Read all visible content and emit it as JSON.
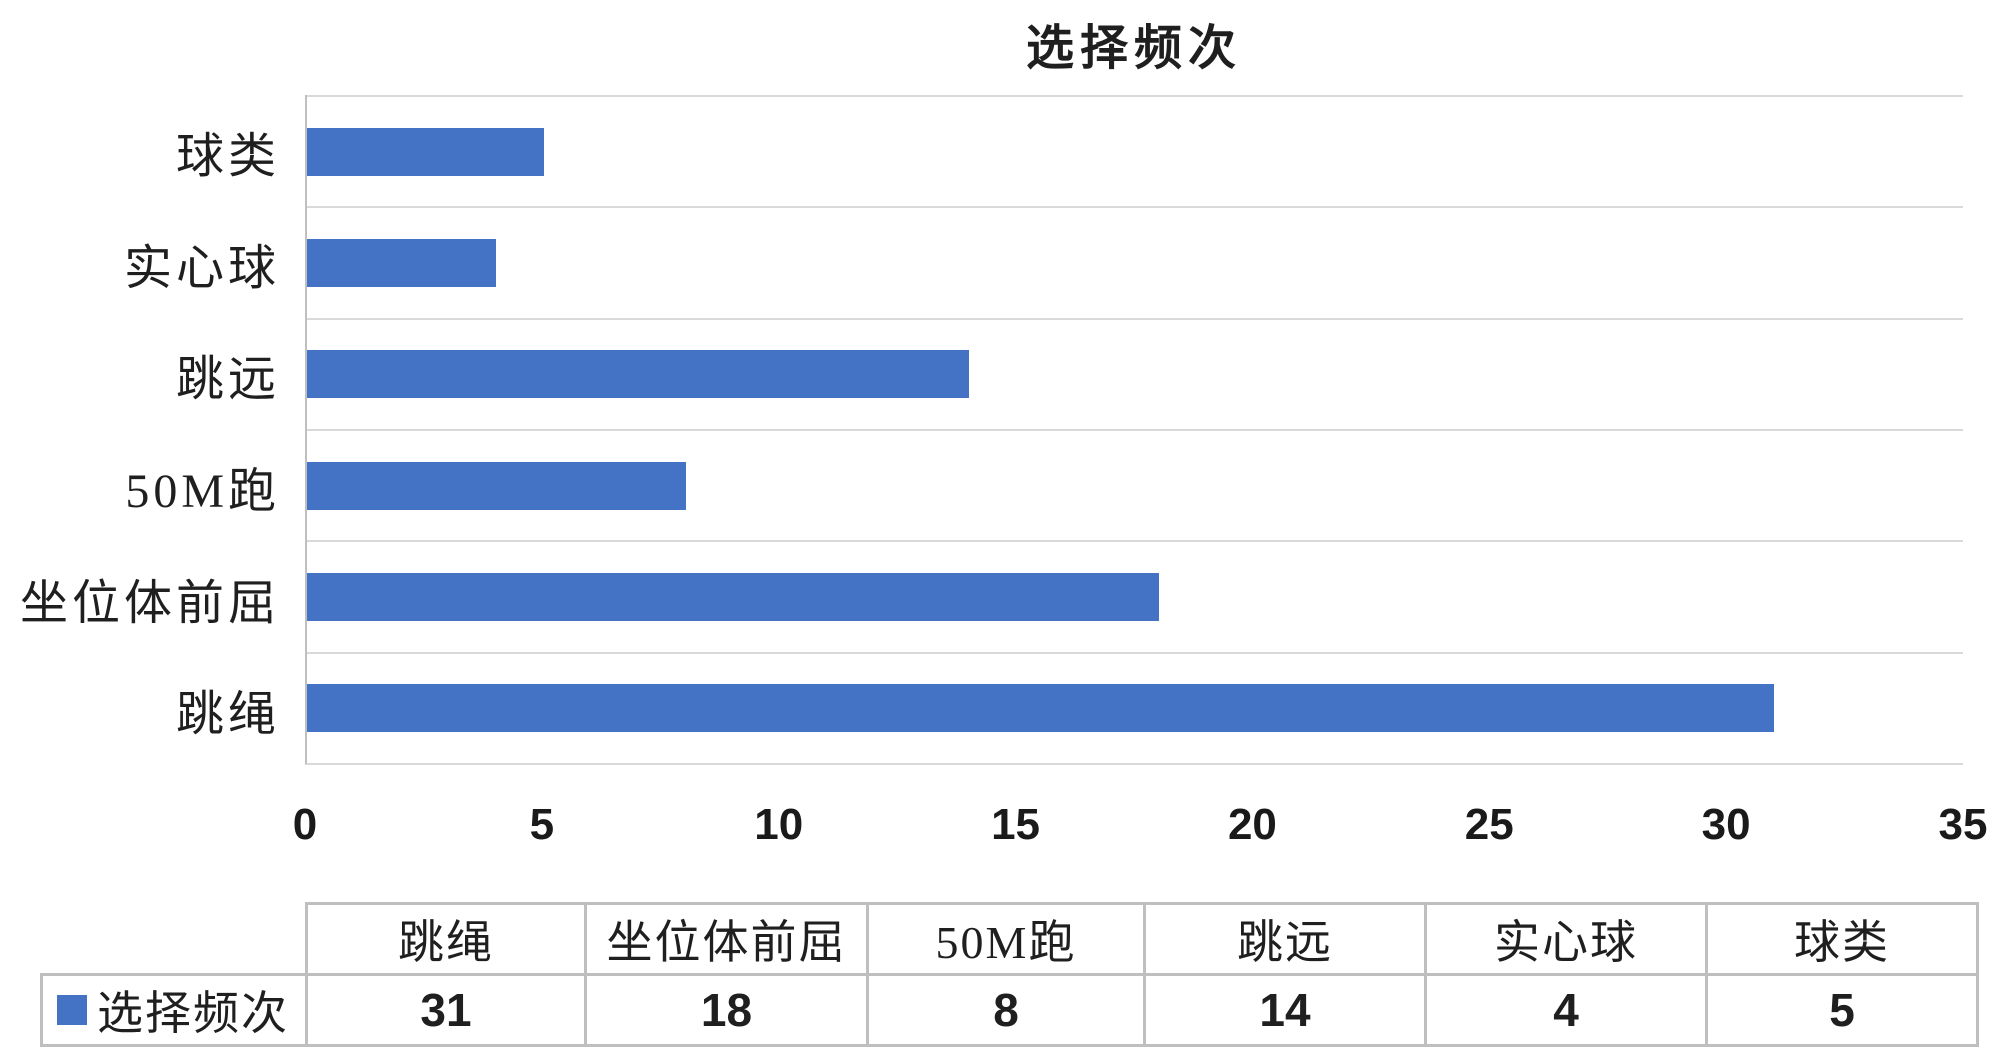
{
  "chart_data": {
    "type": "bar",
    "orientation": "horizontal",
    "title": "选择频次",
    "categories": [
      "球类",
      "实心球",
      "跳远",
      "50M跑",
      "坐位体前屈",
      "跳绳"
    ],
    "values": [
      5,
      4,
      14,
      8,
      18,
      31
    ],
    "series": [
      {
        "name": "选择频次",
        "values": [
          5,
          4,
          14,
          8,
          18,
          31
        ]
      }
    ],
    "xlim": [
      0,
      35
    ],
    "x_ticks": [
      0,
      5,
      10,
      15,
      20,
      25,
      30,
      35
    ],
    "grid": "horizontal-category-separators",
    "legend_position": "table-row-label",
    "bar_color": "#4472C4"
  },
  "data_table": {
    "columns": [
      "跳绳",
      "坐位体前屈",
      "50M跑",
      "跳远",
      "实心球",
      "球类"
    ],
    "rows": [
      {
        "label": "选择频次",
        "values": [
          31,
          18,
          8,
          14,
          4,
          5
        ]
      }
    ]
  },
  "colors": {
    "bar": "#4472C4",
    "gridline": "#D9D9D9",
    "axis_line": "#BFBFBF",
    "table_border": "#BFBFBF",
    "text": "#1F1F1F",
    "background": "#FFFFFF"
  }
}
